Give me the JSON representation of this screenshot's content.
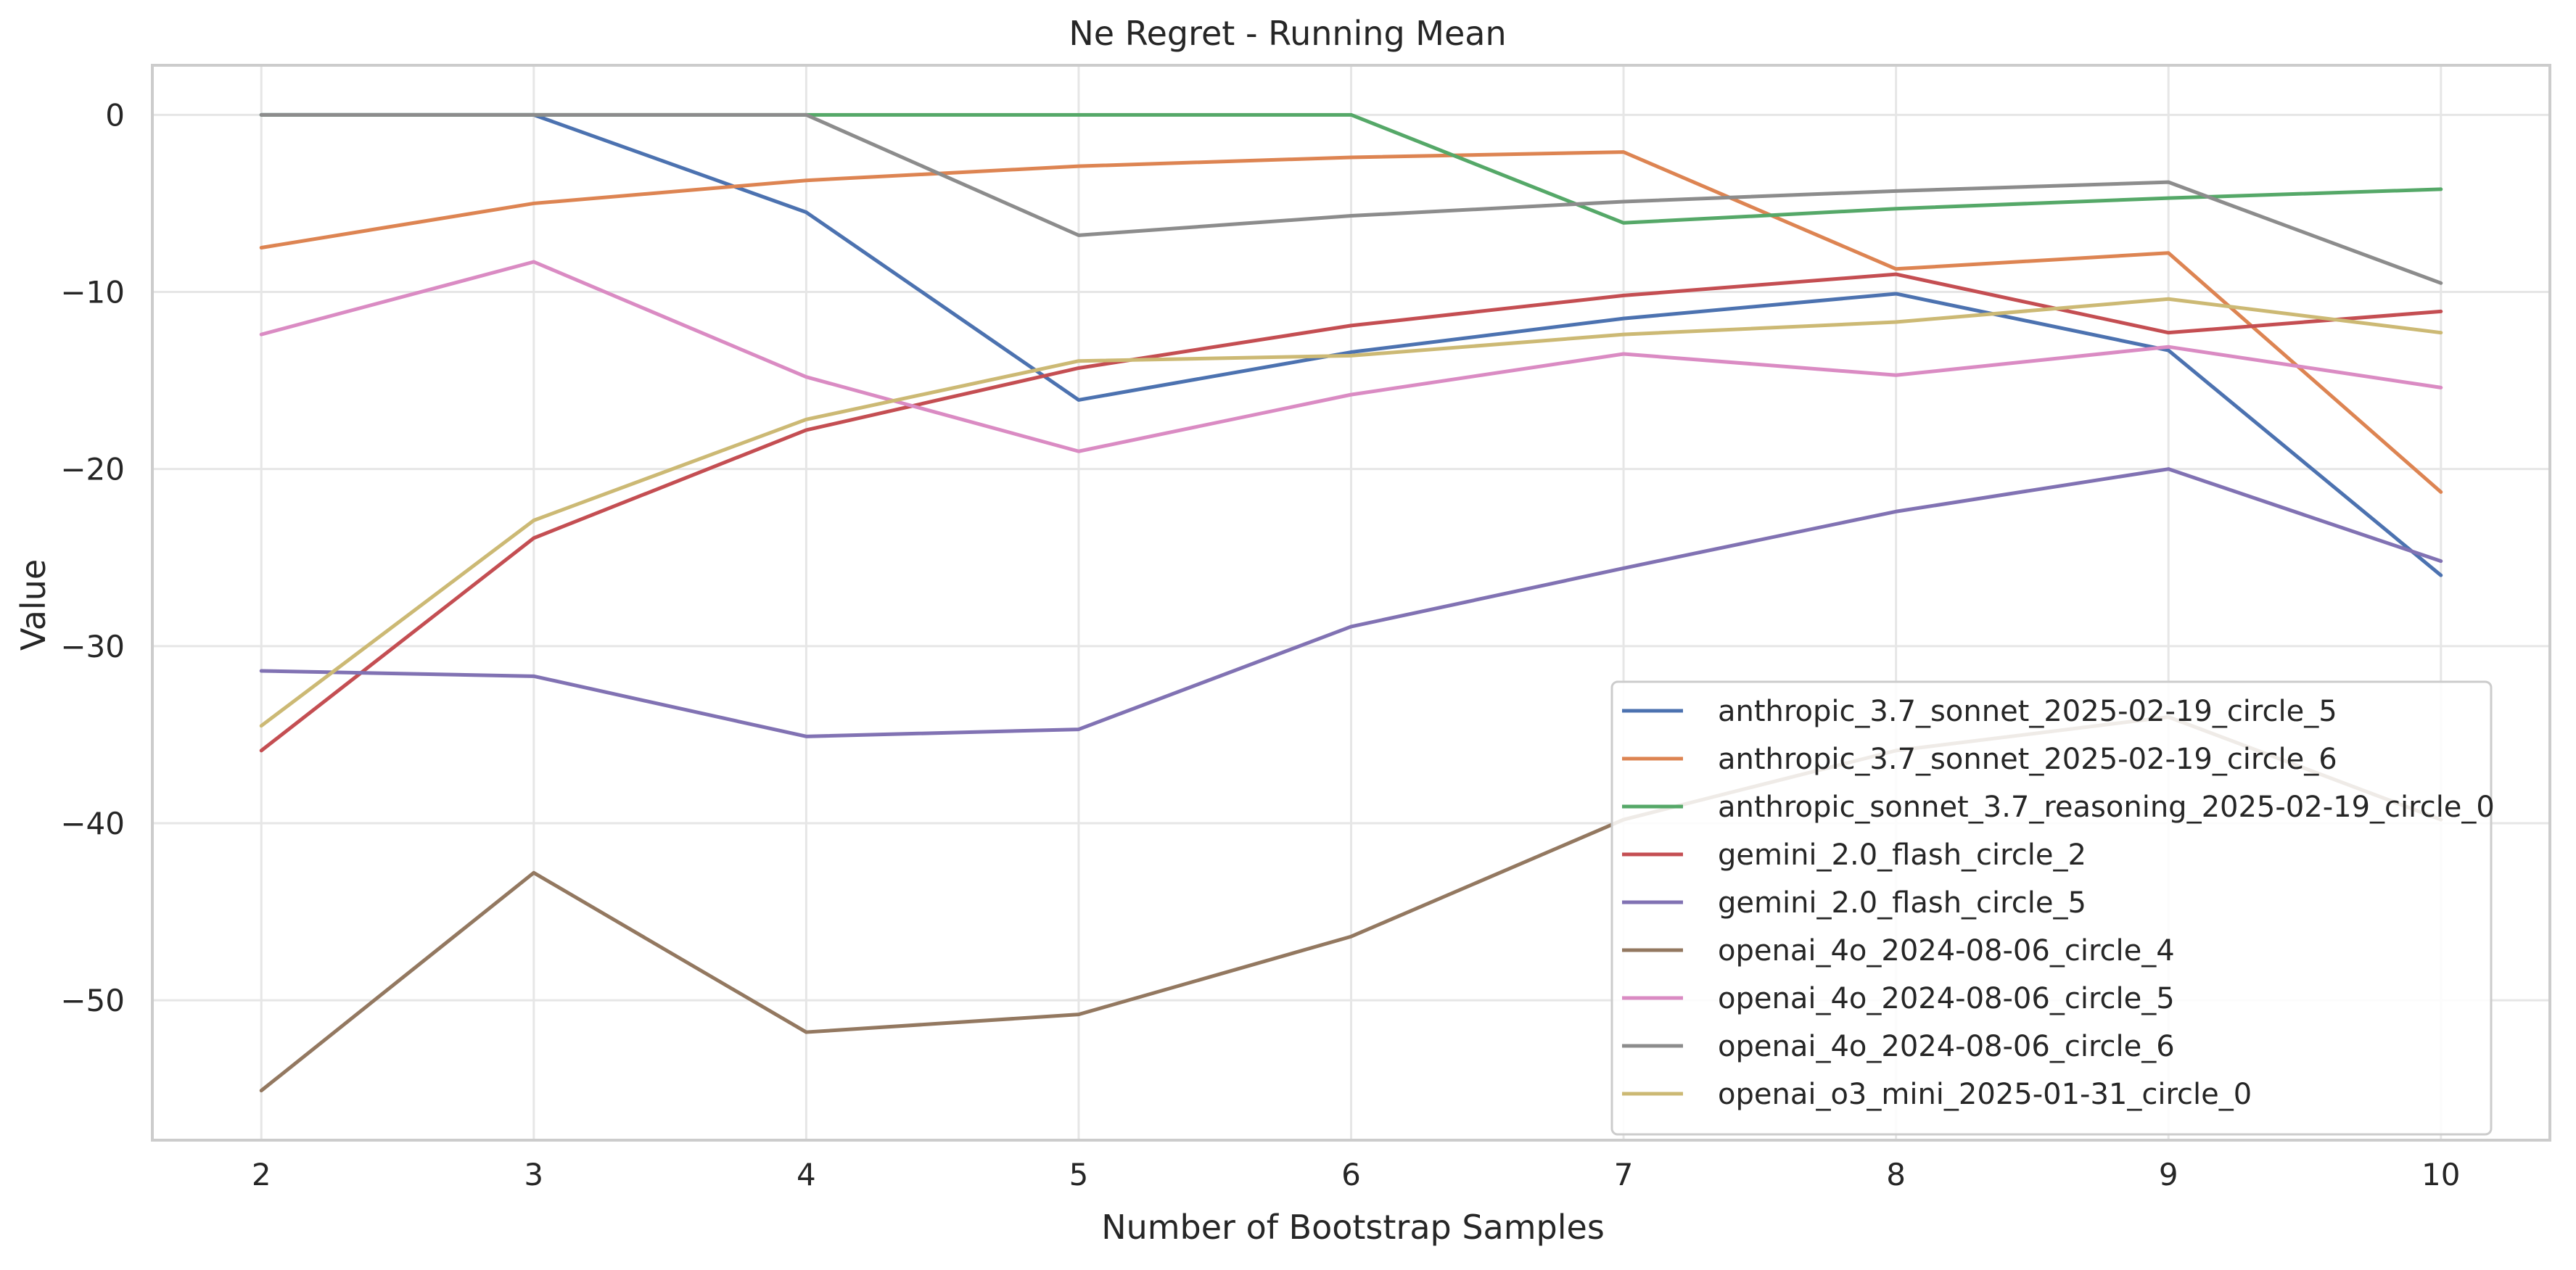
{
  "chart_data": {
    "type": "line",
    "title": "Ne Regret - Running Mean",
    "xlabel": "Number of Bootstrap Samples",
    "ylabel": "Value",
    "x": [
      2,
      3,
      4,
      5,
      6,
      7,
      8,
      9,
      10
    ],
    "xlim": [
      1.6,
      10.4
    ],
    "ylim": [
      -57.9,
      2.8
    ],
    "xticks": [
      2,
      3,
      4,
      5,
      6,
      7,
      8,
      9,
      10
    ],
    "yticks": [
      0,
      -10,
      -20,
      -30,
      -40,
      -50
    ],
    "ytick_labels": [
      "0",
      "−10",
      "−20",
      "−30",
      "−40",
      "−50"
    ],
    "grid": true,
    "legend_position": "lower-right",
    "series": [
      {
        "name": "anthropic_3.7_sonnet_2025-02-19_circle_5",
        "color": "#4c72b0",
        "values": [
          0,
          0,
          -5.5,
          -16.1,
          -13.4,
          -11.5,
          -10.1,
          -13.3,
          -26.0
        ]
      },
      {
        "name": "anthropic_3.7_sonnet_2025-02-19_circle_6",
        "color": "#dd8452",
        "values": [
          -7.5,
          -5.0,
          -3.7,
          -2.9,
          -2.4,
          -2.1,
          -8.7,
          -7.8,
          -21.3
        ]
      },
      {
        "name": "anthropic_sonnet_3.7_reasoning_2025-02-19_circle_0",
        "color": "#55a868",
        "values": [
          0,
          0,
          0,
          0,
          0,
          -6.1,
          -5.3,
          -4.7,
          -4.2
        ]
      },
      {
        "name": "gemini_2.0_flash_circle_2",
        "color": "#c44e52",
        "values": [
          -35.9,
          -23.9,
          -17.8,
          -14.3,
          -11.9,
          -10.2,
          -9.0,
          -12.3,
          -11.1
        ]
      },
      {
        "name": "gemini_2.0_flash_circle_5",
        "color": "#8172b3",
        "values": [
          -31.4,
          -31.7,
          -35.1,
          -34.7,
          -28.9,
          -25.6,
          -22.4,
          -20.0,
          -25.2
        ]
      },
      {
        "name": "openai_4o_2024-08-06_circle_4",
        "color": "#937860",
        "values": [
          -55.1,
          -42.8,
          -51.8,
          -50.8,
          -46.4,
          -39.8,
          -35.9,
          -34.0,
          -39.8
        ]
      },
      {
        "name": "openai_4o_2024-08-06_circle_5",
        "color": "#da8bc3",
        "values": [
          -12.4,
          -8.3,
          -14.8,
          -19.0,
          -15.8,
          -13.5,
          -14.7,
          -13.1,
          -15.4
        ]
      },
      {
        "name": "openai_4o_2024-08-06_circle_6",
        "color": "#8c8c8c",
        "values": [
          0,
          0,
          0,
          -6.8,
          -5.7,
          -4.9,
          -4.3,
          -3.8,
          -9.5
        ]
      },
      {
        "name": "openai_o3_mini_2025-01-31_circle_0",
        "color": "#ccb974",
        "values": [
          -34.5,
          -22.9,
          -17.2,
          -13.9,
          -13.6,
          -12.4,
          -11.7,
          -10.4,
          -12.3
        ]
      }
    ]
  }
}
